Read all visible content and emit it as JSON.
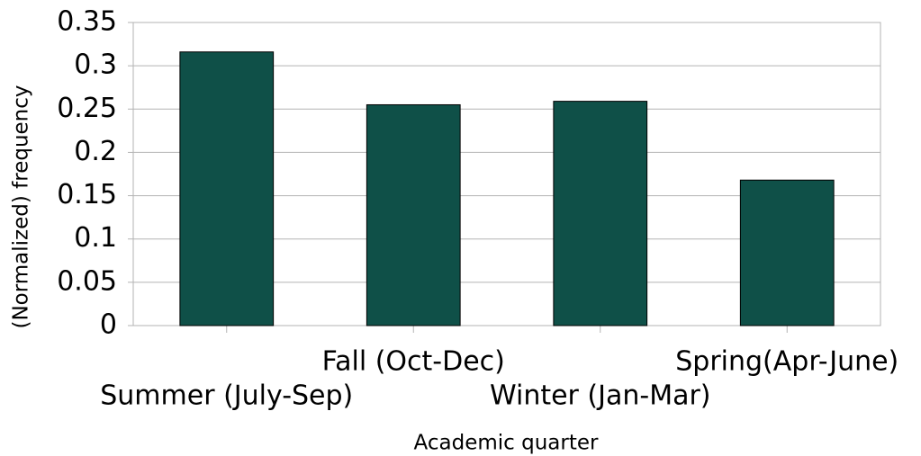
{
  "chart_data": {
    "type": "bar",
    "x_label": "Academic quarter",
    "y_label": "(Normalized) frequency",
    "categories": [
      "Summer (July-Sep)",
      "Fall (Oct-Dec)",
      "Winter (Jan-Mar)",
      "Spring(Apr-June)"
    ],
    "values": [
      0.316,
      0.255,
      0.259,
      0.168
    ],
    "color": "#0f5048",
    "ylim": [
      0,
      0.35
    ],
    "yticks": [
      0,
      0.05,
      0.1,
      0.15,
      0.2,
      0.25,
      0.3,
      0.35
    ],
    "grid": true
  }
}
